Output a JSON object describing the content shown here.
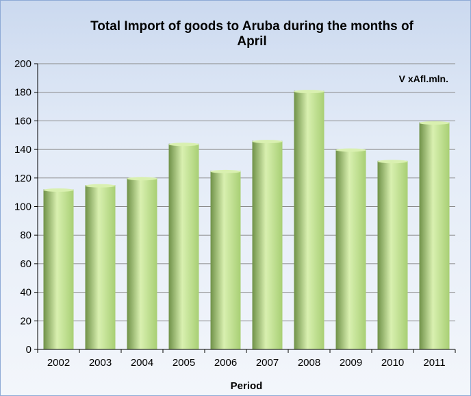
{
  "chart_data": {
    "type": "bar",
    "title_lines": [
      "Total Import of goods to Aruba during the months of",
      "April"
    ],
    "unit_label": "V xAfl.mln.",
    "xlabel": "Period",
    "ylabel": "",
    "categories": [
      "2002",
      "2003",
      "2004",
      "2005",
      "2006",
      "2007",
      "2008",
      "2009",
      "2010",
      "2011"
    ],
    "values": [
      112,
      115,
      120,
      144,
      125,
      146,
      181,
      140,
      132,
      159
    ],
    "ylim": [
      0,
      200
    ],
    "yticks": [
      0,
      20,
      40,
      60,
      80,
      100,
      120,
      140,
      160,
      180,
      200
    ],
    "grid": true,
    "colors": {
      "bar_light": "#d9f0b0",
      "bar_mid": "#a8cf74",
      "bar_dark": "#6f9148",
      "background": "#dfe8f5"
    }
  }
}
